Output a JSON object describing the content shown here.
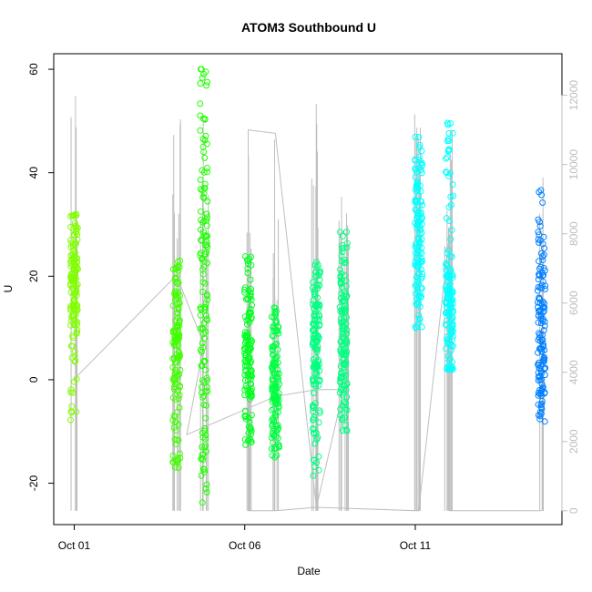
{
  "chart_data": {
    "type": "scatter",
    "title": "ATOM3 Southbound U",
    "xlabel": "Date",
    "ylabel": "U",
    "x_ticks": [
      "Oct 01",
      "Oct 06",
      "Oct 11"
    ],
    "x_tick_days": [
      1,
      6,
      11
    ],
    "xlim_days": [
      0.4,
      15.3
    ],
    "ylim": [
      -28,
      63
    ],
    "y_ticks": [
      -20,
      0,
      20,
      40,
      60
    ],
    "y2lim": [
      -400,
      13200
    ],
    "y2_ticks": [
      0,
      2000,
      4000,
      6000,
      8000,
      10000,
      12000
    ],
    "grid": false,
    "legend": "none",
    "colors": {
      "line": "#bebebe",
      "lime": "#80ff00",
      "green": "#00ff00",
      "spring": "#00ff80",
      "cyan": "#00ffff",
      "azure": "#0080ff"
    },
    "series": [
      {
        "day": 1.0,
        "ymin": -8,
        "ymax": 33,
        "center": 20,
        "color": "#80ff00"
      },
      {
        "day": 4.0,
        "ymin": -17,
        "ymax": 23,
        "center": 5,
        "color": "#40ff00"
      },
      {
        "day": 4.8,
        "ymin": -24,
        "ymax": 60,
        "center": 22,
        "color": "#20ff00"
      },
      {
        "day": 6.1,
        "ymin": -13,
        "ymax": 25,
        "center": 2,
        "color": "#00ff20"
      },
      {
        "day": 6.9,
        "ymin": -15,
        "ymax": 14,
        "center": -2,
        "color": "#00ff40"
      },
      {
        "day": 8.1,
        "ymin": -19,
        "ymax": 24,
        "center": 8,
        "color": "#00ff80"
      },
      {
        "day": 8.9,
        "ymin": -10,
        "ymax": 30,
        "center": 8,
        "color": "#00ff80"
      },
      {
        "day": 11.1,
        "ymin": 10,
        "ymax": 47,
        "center": 28,
        "color": "#00ffff"
      },
      {
        "day": 12.0,
        "ymin": 2,
        "ymax": 51,
        "center": 14,
        "color": "#00ffff"
      },
      {
        "day": 14.7,
        "ymin": -9,
        "ymax": 37,
        "center": 10,
        "color": "#0080ff"
      }
    ],
    "right_axis_series": {
      "spike_bands": [
        {
          "day": 1.0,
          "min": 0,
          "max": 12000
        },
        {
          "day": 4.0,
          "min": 0,
          "max": 12000
        },
        {
          "day": 4.8,
          "min": 0,
          "max": 12000
        },
        {
          "day": 6.1,
          "min": 0,
          "max": 11000
        },
        {
          "day": 6.9,
          "min": 0,
          "max": 11000
        },
        {
          "day": 8.1,
          "min": 0,
          "max": 12000
        },
        {
          "day": 8.9,
          "min": 0,
          "max": 10000
        },
        {
          "day": 11.1,
          "min": 0,
          "max": 11800
        },
        {
          "day": 12.0,
          "min": 0,
          "max": 11000
        },
        {
          "day": 14.7,
          "min": 0,
          "max": 10000
        }
      ],
      "path": [
        [
          1.0,
          3800
        ],
        [
          4.0,
          6800
        ],
        [
          4.8,
          4800
        ],
        [
          4.3,
          2200
        ],
        [
          6.9,
          3300
        ],
        [
          8.1,
          3500
        ],
        [
          8.9,
          3500
        ],
        [
          8.1,
          100
        ],
        [
          6.9,
          0
        ],
        [
          6.1,
          0
        ],
        [
          6.1,
          11000
        ],
        [
          6.9,
          10900
        ],
        [
          8.1,
          100
        ],
        [
          11.1,
          0
        ],
        [
          12.0,
          8000
        ],
        [
          12.0,
          0
        ],
        [
          14.7,
          0
        ]
      ]
    }
  }
}
